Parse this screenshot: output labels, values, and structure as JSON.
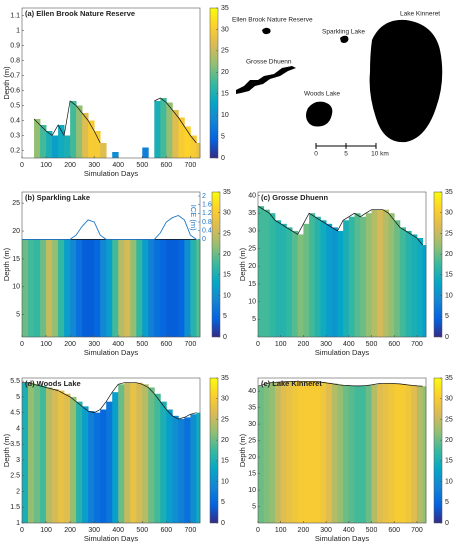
{
  "colormap": [
    "#352a87",
    "#0363e1",
    "#1485d4",
    "#06a7c6",
    "#38b99e",
    "#92bf73",
    "#d9ba56",
    "#fcce2e",
    "#f9fb0e"
  ],
  "map": {
    "labels": [
      "Ellen Brook Nature Reserve",
      "Sparkling Lake",
      "Lake Kinneret",
      "Grosse Dhuenn",
      "Woods Lake"
    ],
    "scale": [
      "0",
      "5",
      "10 km"
    ]
  },
  "chart_data": [
    {
      "type": "heatmap",
      "title": "(a) Ellen Brook Nature Reserve",
      "xlabel": "Simulation Days",
      "ylabel": "Depth (m)",
      "xlim": [
        0,
        740
      ],
      "xticks": [
        0,
        100,
        200,
        300,
        400,
        500,
        600,
        700
      ],
      "ylim": [
        0.15,
        1.15
      ],
      "yticks": [
        0.2,
        0.3,
        0.4,
        0.5,
        0.6,
        0.7,
        0.8,
        0.9,
        1,
        1.1
      ],
      "clim": [
        0,
        35
      ],
      "cticks": [
        0,
        5,
        10,
        15,
        20,
        25,
        30,
        35
      ],
      "x": [
        0,
        25,
        50,
        75,
        100,
        125,
        150,
        175,
        200,
        225,
        250,
        275,
        300,
        325,
        350,
        375,
        400,
        425,
        450,
        475,
        500,
        525,
        550,
        575,
        600,
        625,
        650,
        675,
        700,
        725
      ],
      "depth": [
        null,
        null,
        0.41,
        0.37,
        0.33,
        0.3,
        0.37,
        0.3,
        0.53,
        0.5,
        0.45,
        0.4,
        0.33,
        0.25,
        null,
        0.19,
        null,
        null,
        null,
        null,
        0.22,
        null,
        0.53,
        0.55,
        0.52,
        0.47,
        0.42,
        0.36,
        0.3,
        0.25
      ],
      "temp": [
        null,
        null,
        22,
        18,
        15,
        12,
        14,
        15,
        18,
        22,
        27,
        30,
        30,
        27,
        null,
        10,
        null,
        null,
        null,
        null,
        8,
        null,
        15,
        18,
        22,
        27,
        30,
        31,
        30,
        28
      ]
    },
    {
      "type": "heatmap",
      "title": "(b) Sparkling Lake",
      "xlabel": "Simulation Days",
      "ylabel": "Depth (m)",
      "xlim": [
        0,
        740
      ],
      "xticks": [
        0,
        100,
        200,
        300,
        400,
        500,
        600,
        700
      ],
      "ylim": [
        1,
        27
      ],
      "yticks": [
        5,
        10,
        15,
        20,
        25
      ],
      "clim": [
        0,
        35
      ],
      "cticks": [
        0,
        5,
        10,
        15,
        20,
        25,
        30,
        35
      ],
      "x": [
        0,
        25,
        50,
        75,
        100,
        125,
        150,
        175,
        200,
        225,
        250,
        275,
        300,
        325,
        350,
        375,
        400,
        425,
        450,
        475,
        500,
        525,
        550,
        575,
        600,
        625,
        650,
        675,
        700,
        725
      ],
      "depth": [
        18.5,
        18.5,
        18.5,
        18.5,
        18.5,
        18.5,
        18.5,
        18.5,
        18.5,
        18.5,
        18.5,
        18.5,
        18.5,
        18.5,
        18.5,
        18.5,
        18.5,
        18.5,
        18.5,
        18.5,
        18.5,
        18.5,
        18.5,
        18.5,
        18.5,
        18.5,
        18.5,
        18.5,
        18.5,
        18.5
      ],
      "temp": [
        20,
        18,
        17,
        20,
        25,
        22,
        17,
        12,
        9,
        6,
        4,
        4,
        5,
        9,
        12,
        18,
        24,
        26,
        22,
        17,
        12,
        8,
        6,
        5,
        4,
        4,
        5,
        10,
        16,
        19
      ],
      "y2label": "ICE (m)",
      "y2lim": [
        0,
        2
      ],
      "y2ticks": [
        0,
        0.4,
        0.8,
        1.2,
        1.6,
        2
      ],
      "y2color": "#1f77c4",
      "ice": [
        0,
        0,
        0,
        0,
        0,
        0,
        0,
        0,
        0,
        0.2,
        0.6,
        0.9,
        0.8,
        0.2,
        0,
        0,
        0,
        0,
        0,
        0,
        0,
        0,
        0,
        0.3,
        0.8,
        1.0,
        1.1,
        0.9,
        0.2,
        0
      ]
    },
    {
      "type": "heatmap",
      "title": "(c) Grosse Dhuenn",
      "xlabel": "Simulation Days",
      "ylabel": "Depth (m)",
      "xlim": [
        0,
        740
      ],
      "xticks": [
        0,
        100,
        200,
        300,
        400,
        500,
        600,
        700
      ],
      "ylim": [
        0,
        41
      ],
      "yticks": [
        5,
        10,
        15,
        20,
        25,
        30,
        35,
        40
      ],
      "clim": [
        0,
        35
      ],
      "cticks": [
        0,
        5,
        10,
        15,
        20,
        25,
        30,
        35
      ],
      "x": [
        0,
        25,
        50,
        75,
        100,
        125,
        150,
        175,
        200,
        225,
        250,
        275,
        300,
        325,
        350,
        375,
        400,
        425,
        450,
        475,
        500,
        525,
        550,
        575,
        600,
        625,
        650,
        675,
        700,
        725
      ],
      "depth": [
        37,
        36,
        35,
        33,
        32,
        31,
        30,
        29,
        32,
        35,
        34,
        33,
        32,
        31,
        30,
        33,
        34,
        35,
        34,
        35,
        36,
        36,
        36,
        35,
        33,
        31,
        30,
        29,
        28,
        26
      ],
      "temp": [
        18,
        18,
        17,
        16,
        16,
        17,
        19,
        21,
        20,
        18,
        16,
        14,
        12,
        11,
        13,
        15,
        17,
        19,
        20,
        22,
        24,
        26,
        24,
        22,
        20,
        18,
        16,
        15,
        14,
        12
      ]
    },
    {
      "type": "heatmap",
      "title": "(d) Woods Lake",
      "xlabel": "Simulation Days",
      "ylabel": "Depth (m)",
      "xlim": [
        0,
        740
      ],
      "xticks": [
        0,
        100,
        200,
        300,
        400,
        500,
        600,
        700
      ],
      "ylim": [
        1,
        5.6
      ],
      "yticks": [
        1,
        1.5,
        2,
        2.5,
        3,
        3.5,
        4,
        4.5,
        5,
        5.5
      ],
      "clim": [
        0,
        35
      ],
      "cticks": [
        0,
        5,
        10,
        15,
        20,
        25,
        30,
        35
      ],
      "x": [
        0,
        25,
        50,
        75,
        100,
        125,
        150,
        175,
        200,
        225,
        250,
        275,
        300,
        325,
        350,
        375,
        400,
        425,
        450,
        475,
        500,
        525,
        550,
        575,
        600,
        625,
        650,
        675,
        700,
        725
      ],
      "depth": [
        5.45,
        5.45,
        5.4,
        5.35,
        5.3,
        5.25,
        5.2,
        5.1,
        5.0,
        4.85,
        4.7,
        4.55,
        4.5,
        4.6,
        4.85,
        5.15,
        5.4,
        5.45,
        5.45,
        5.45,
        5.4,
        5.3,
        5.1,
        4.85,
        4.6,
        4.4,
        4.3,
        4.35,
        4.45,
        4.5
      ],
      "temp": [
        15,
        22,
        20,
        18,
        24,
        26,
        28,
        27,
        22,
        16,
        12,
        8,
        6,
        5,
        7,
        12,
        20,
        25,
        28,
        26,
        24,
        20,
        18,
        15,
        12,
        10,
        8,
        6,
        10,
        14
      ]
    },
    {
      "type": "heatmap",
      "title": "(e) Lake Kinneret",
      "xlabel": "Simulation Days",
      "ylabel": "Depth (m)",
      "xlim": [
        0,
        740
      ],
      "xticks": [
        0,
        100,
        200,
        300,
        400,
        500,
        600,
        700
      ],
      "ylim": [
        0,
        44
      ],
      "yticks": [
        5,
        10,
        15,
        20,
        25,
        30,
        35,
        40
      ],
      "clim": [
        0,
        35
      ],
      "cticks": [
        0,
        5,
        10,
        15,
        20,
        25,
        30,
        35
      ],
      "x": [
        0,
        25,
        50,
        75,
        100,
        125,
        150,
        175,
        200,
        225,
        250,
        275,
        300,
        325,
        350,
        375,
        400,
        425,
        450,
        475,
        500,
        525,
        550,
        575,
        600,
        625,
        650,
        675,
        700,
        725
      ],
      "depth": [
        41.5,
        42,
        42.5,
        42.7,
        42.8,
        42.9,
        43,
        43,
        43,
        43,
        43,
        42.8,
        42.5,
        42.3,
        42,
        41.8,
        41.7,
        41.6,
        41.6,
        41.7,
        41.9,
        42.2,
        42.4,
        42.4,
        42.3,
        42.2,
        42,
        41.8,
        41.6,
        41.5
      ],
      "temp": [
        20,
        21,
        22,
        25,
        27,
        28,
        29,
        30,
        30,
        30,
        30,
        29,
        27,
        24,
        22,
        20,
        19,
        18,
        18,
        20,
        24,
        27,
        28,
        29,
        30,
        30,
        29,
        27,
        24,
        22
      ]
    }
  ]
}
